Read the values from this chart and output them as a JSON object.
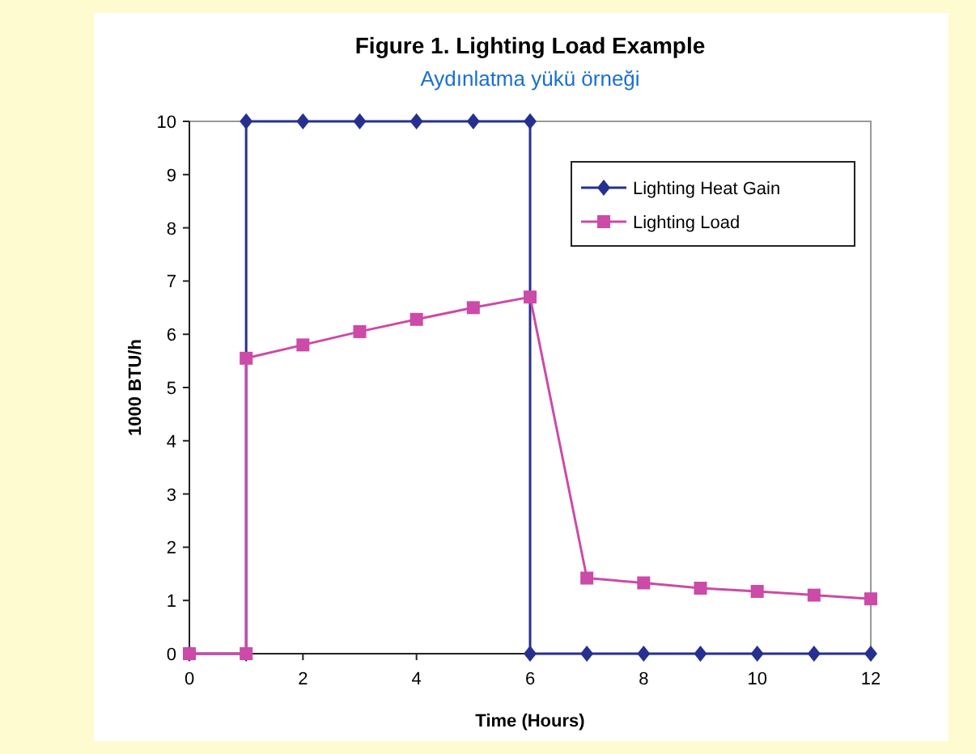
{
  "chart_data": {
    "type": "line",
    "title": "Figure 1.  Lighting Load Example",
    "subtitle": "Aydınlatma yükü örneği",
    "xlabel": "Time (Hours)",
    "ylabel": "1000 BTU/h",
    "xlim": [
      0,
      12
    ],
    "xticks": [
      0,
      2,
      4,
      6,
      8,
      10,
      12
    ],
    "ylim": [
      0,
      10
    ],
    "yticks": [
      0,
      1,
      2,
      3,
      4,
      5,
      6,
      7,
      8,
      9,
      10
    ],
    "grid": false,
    "legend": "top right",
    "series": [
      {
        "name": "Lighting Heat Gain",
        "color": "#26308f",
        "marker": "diamond",
        "x": [
          0,
          1,
          1,
          2,
          3,
          4,
          5,
          6,
          6,
          7,
          8,
          9,
          10,
          11,
          12
        ],
        "values": [
          0,
          0,
          10,
          10,
          10,
          10,
          10,
          10,
          0,
          0,
          0,
          0,
          0,
          0,
          0
        ]
      },
      {
        "name": "Lighting Load",
        "color": "#cc4aa8",
        "marker": "square",
        "x": [
          0,
          1,
          1,
          2,
          3,
          4,
          5,
          6,
          7,
          8,
          9,
          10,
          11,
          12
        ],
        "values": [
          0,
          0,
          5.55,
          5.8,
          6.05,
          6.28,
          6.5,
          6.7,
          1.42,
          1.33,
          1.23,
          1.17,
          1.1,
          1.03
        ]
      }
    ]
  }
}
